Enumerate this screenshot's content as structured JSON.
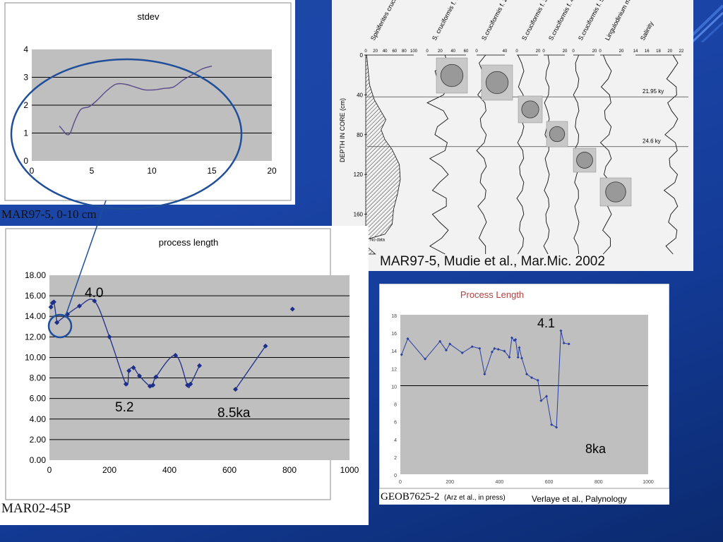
{
  "slide_caption_right": "MAR97-5, Mudie et al., Mar.Mic. 2002",
  "stdev_chart": {
    "title": "stdev",
    "caption": "MAR97-5, 0-10 cm",
    "chart_data": {
      "type": "line",
      "title": "stdev",
      "xlim": [
        0,
        20
      ],
      "ylim": [
        0,
        4
      ],
      "xticks": [
        "0",
        "5",
        "10",
        "15",
        "20"
      ],
      "yticks": [
        "0",
        "1",
        "2",
        "3",
        "4"
      ],
      "grid": true,
      "series": [
        {
          "x": [
            2.3,
            2.6,
            2.9,
            3.2,
            3.6,
            4.1,
            4.8,
            5.5,
            6.2,
            7.0,
            7.8,
            8.6,
            9.4,
            10.2,
            11.0,
            11.8,
            12.6,
            13.4,
            14.2,
            15.0
          ],
          "y": [
            1.25,
            1.1,
            0.95,
            1.0,
            1.45,
            1.85,
            1.95,
            2.2,
            2.5,
            2.75,
            2.75,
            2.65,
            2.55,
            2.55,
            2.6,
            2.65,
            2.9,
            3.1,
            3.3,
            3.4
          ]
        }
      ]
    }
  },
  "process_length_chart": {
    "title": "process length",
    "caption": "MAR02-45P",
    "annotation_4_0": "4.0",
    "annotation_5_2": "5.2",
    "annotation_8_5": "8.5ka",
    "chart_data": {
      "type": "scatter",
      "title": "process length",
      "xlim": [
        0,
        1000
      ],
      "ylim": [
        0,
        18
      ],
      "xticks": [
        "0",
        "200",
        "400",
        "600",
        "800",
        "1000"
      ],
      "yticks": [
        "0.00",
        "2.00",
        "4.00",
        "6.00",
        "8.00",
        "10.00",
        "12.00",
        "14.00",
        "16.00",
        "18.00"
      ],
      "grid": true,
      "series": [
        {
          "x": [
            5,
            10,
            15,
            25
          ],
          "y": [
            14.9,
            15.3,
            15.4,
            13.4
          ]
        },
        {
          "x": [
            25,
            60,
            100,
            150,
            200,
            255,
            265,
            280,
            300,
            335,
            345,
            355,
            420,
            460,
            470,
            500
          ],
          "y": [
            13.4,
            14.2,
            15.0,
            15.5,
            12.0,
            7.4,
            8.7,
            9.0,
            8.2,
            7.2,
            7.3,
            8.1,
            10.2,
            7.3,
            7.4,
            9.2
          ]
        },
        {
          "x": [
            620,
            720
          ],
          "y": [
            6.9,
            11.1
          ]
        },
        {
          "x": [
            810
          ],
          "y": [
            14.7
          ]
        }
      ]
    }
  },
  "verlaye_chart": {
    "title": "Process Length",
    "caption_main": "GEOB7625-2",
    "caption_paren": "(Arz et al., in press)",
    "caption_credit": "Verlaye et al., Palynology",
    "annotation_4_1": "4.1",
    "annotation_8ka": "8ka",
    "chart_data": {
      "type": "line",
      "title": "Process Length",
      "xlim": [
        0,
        1000
      ],
      "ylim": [
        0,
        18
      ],
      "xticks": [
        "0",
        "200",
        "400",
        "600",
        "800",
        "1000"
      ],
      "yticks": [
        "0",
        "2",
        "4",
        "6",
        "8",
        "10",
        "12",
        "14",
        "16",
        "18"
      ],
      "grid": true,
      "series": [
        {
          "x": [
            5,
            30,
            100,
            160,
            185,
            200,
            250,
            290,
            320,
            340,
            370,
            380,
            395,
            420,
            440,
            450,
            460,
            465,
            475,
            480,
            490,
            510,
            530,
            555,
            568,
            590,
            610,
            630,
            648,
            660,
            680
          ],
          "y": [
            13.5,
            15.3,
            13.0,
            15.0,
            14.0,
            14.7,
            13.7,
            14.4,
            14.2,
            11.3,
            13.8,
            14.2,
            14.1,
            13.9,
            13.2,
            15.4,
            15.1,
            15.2,
            13.2,
            14.3,
            13.1,
            11.3,
            10.9,
            10.6,
            8.3,
            8.8,
            5.6,
            5.3,
            16.2,
            14.8,
            14.7
          ]
        }
      ]
    }
  },
  "core_figure": {
    "depth_axis_label": "DEPTH IN CORE (cm)",
    "depth_ticks": [
      "0",
      "40",
      "80",
      "120",
      "160",
      "200"
    ],
    "no_data_label": "No data",
    "horizon_labels": [
      "21.95 ky",
      "24.6 ky"
    ],
    "columns": [
      {
        "name": "Spiniferites cruciformis",
        "ticks": [
          "0",
          "20",
          "40",
          "60",
          "80",
          "100"
        ]
      },
      {
        "name": "S. cruciformis f. 1",
        "ticks": [
          "0",
          "20",
          "40",
          "60"
        ]
      },
      {
        "name": "S.cruciformis f. 2",
        "ticks": [
          "0",
          "40"
        ]
      },
      {
        "name": "S.cruciformis f. 3",
        "ticks": [
          "0",
          "20"
        ]
      },
      {
        "name": "S.cruciformis f. 4",
        "ticks": [
          "0",
          "20"
        ]
      },
      {
        "name": "S.cruciformis f. 5",
        "ticks": [
          "0",
          "20"
        ]
      },
      {
        "name": "Lingulodinium machaer. s.l.",
        "ticks": [
          "0",
          "20"
        ]
      },
      {
        "name": "Salinity",
        "ticks": [
          "14",
          "16",
          "18",
          "20",
          "22"
        ]
      }
    ]
  }
}
